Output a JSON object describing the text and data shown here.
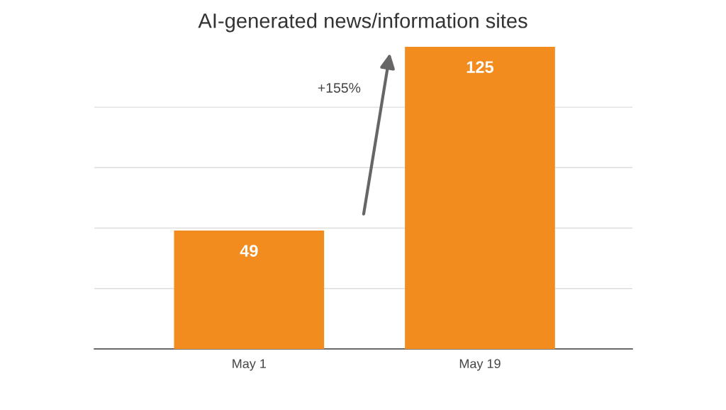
{
  "chart_data": {
    "type": "bar",
    "title": "AI-generated news/information sites",
    "categories": [
      "May 1",
      "May 19"
    ],
    "values": [
      49,
      125
    ],
    "color": "#f28c1e",
    "data_labels": true,
    "ylim": [
      0,
      125
    ],
    "yticks": [
      {
        "value": 25,
        "label": null
      },
      {
        "value": 50,
        "label": null
      },
      {
        "value": 75,
        "label": null
      },
      {
        "value": 100,
        "label": null
      }
    ],
    "grid": "y",
    "tick_labels": "x",
    "annotations": [
      "+155%"
    ]
  }
}
